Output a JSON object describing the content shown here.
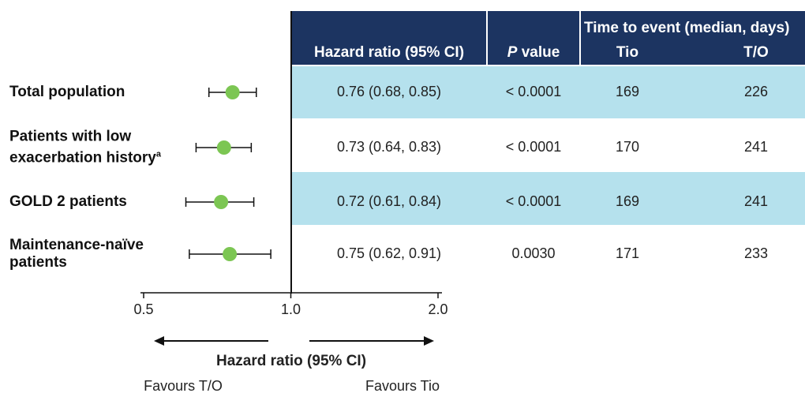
{
  "chart_data": {
    "type": "forest",
    "xlabel": "Hazard ratio (95% CI)",
    "xscale": "log",
    "xlim": [
      0.5,
      2.0
    ],
    "xticks": [
      0.5,
      {
        "value": 1,
        "label": "1.0"
      },
      {
        "value": 2,
        "label": "2.0"
      }
    ],
    "left_annotation": "Favours T/O",
    "right_annotation": "Favours Tio",
    "color": "#7cc653",
    "categories": [
      "Total population",
      "Patients with low exacerbation history",
      "GOLD 2 patients",
      "Maintenance-naïve patients"
    ],
    "category_footnotes": [
      null,
      "a",
      null,
      null
    ],
    "values": [
      0.76,
      0.73,
      0.72,
      0.75
    ],
    "lower": [
      0.68,
      0.64,
      0.61,
      0.62
    ],
    "upper": [
      0.85,
      0.83,
      0.84,
      0.91
    ],
    "value_labels": [
      "0.76 (0.68, 0.85)",
      "0.73 (0.64, 0.83)",
      "0.72 (0.61, 0.84)",
      "0.75 (0.62, 0.91)"
    ],
    "table": {
      "hr_header": "Hazard ratio (95% CI)",
      "p_header": {
        "italic": "P",
        "text": "value"
      },
      "time_header": "Time to event (median, days)",
      "tio_header": "Tio",
      "to_header": "T/O",
      "p_values": [
        "< 0.0001",
        "< 0.0001",
        "< 0.0001",
        "0.0030"
      ],
      "tio": [
        169,
        170,
        169,
        171
      ],
      "to": [
        226,
        241,
        241,
        233
      ]
    }
  }
}
